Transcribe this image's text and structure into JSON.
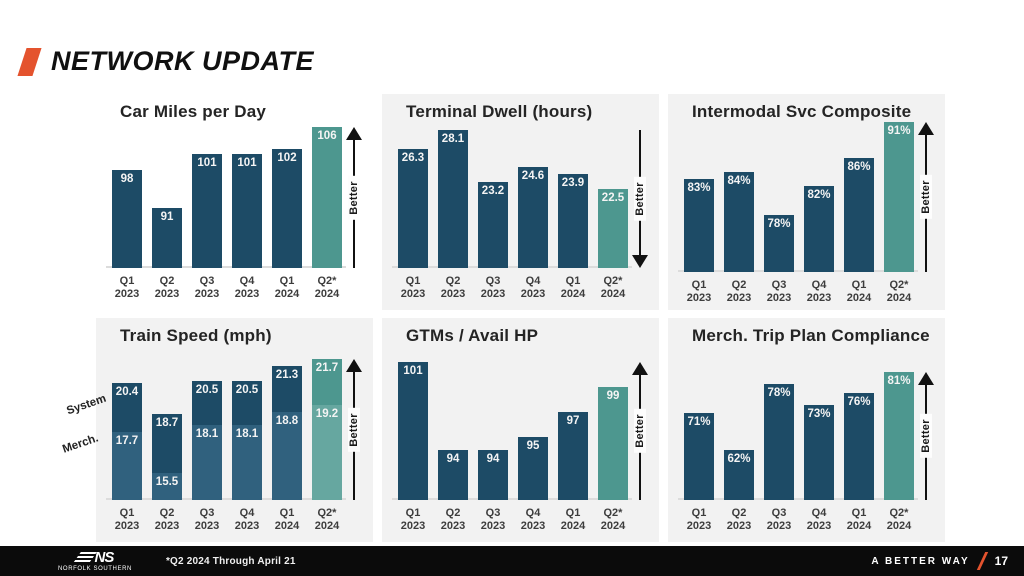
{
  "header": {
    "title": "NETWORK UPDATE"
  },
  "colors": {
    "accent_orange": "#E4532E",
    "navy": "#1D4B66",
    "navy_light": "#30617E",
    "teal": "#4D978F",
    "teal_light": "#66A7A0",
    "panel_bg": "#F2F2F2",
    "footer_bg": "#0B0B0B",
    "bar_label": "#F4F4F4",
    "axis_label": "#3D3D3D"
  },
  "footer": {
    "logo_text": "NS",
    "logo_subtext": "NORFOLK SOUTHERN",
    "footnote": "*Q2 2024 Through April 21",
    "tagline": "A BETTER WAY",
    "page_number": "17"
  },
  "chart_data": [
    {
      "id": "car-miles",
      "type": "bar",
      "title": "Car Miles per Day",
      "categories": [
        "Q1 2023",
        "Q2 2023",
        "Q3 2023",
        "Q4 2023",
        "Q1 2024",
        "Q2* 2024"
      ],
      "values": [
        98,
        91,
        101,
        101,
        102,
        106
      ],
      "labels": [
        "98",
        "91",
        "101",
        "101",
        "102",
        "106"
      ],
      "better": "up",
      "better_label": "Better",
      "highlight_last": true,
      "ylim": [
        80,
        106
      ],
      "panel": "white",
      "grid": false
    },
    {
      "id": "terminal-dwell",
      "type": "bar",
      "title": "Terminal Dwell (hours)",
      "categories": [
        "Q1 2023",
        "Q2 2023",
        "Q3 2023",
        "Q4 2023",
        "Q1 2024",
        "Q2* 2024"
      ],
      "values": [
        26.3,
        28.1,
        23.2,
        24.6,
        23.9,
        22.5
      ],
      "labels": [
        "26.3",
        "28.1",
        "23.2",
        "24.6",
        "23.9",
        "22.5"
      ],
      "better": "down",
      "better_label": "Better",
      "highlight_last": true,
      "ylim": [
        15,
        28.1
      ],
      "panel": "gray",
      "grid": false
    },
    {
      "id": "intermodal-svc",
      "type": "bar",
      "title": "Intermodal Svc Composite",
      "categories": [
        "Q1 2023",
        "Q2 2023",
        "Q3 2023",
        "Q4 2023",
        "Q1 2024",
        "Q2* 2024"
      ],
      "values": [
        83,
        84,
        78,
        82,
        86,
        91
      ],
      "labels": [
        "83%",
        "84%",
        "78%",
        "82%",
        "86%",
        "91%"
      ],
      "better": "up",
      "better_label": "Better",
      "highlight_last": true,
      "ylim": [
        70,
        91
      ],
      "panel": "gray",
      "grid": false
    },
    {
      "id": "train-speed",
      "type": "stacked-bar",
      "title": "Train Speed (mph)",
      "categories": [
        "Q1 2023",
        "Q2 2023",
        "Q3 2023",
        "Q4 2023",
        "Q1 2024",
        "Q2* 2024"
      ],
      "series": [
        {
          "name": "System",
          "values": [
            20.4,
            18.7,
            20.5,
            20.5,
            21.3,
            21.7
          ],
          "labels": [
            "20.4",
            "18.7",
            "20.5",
            "20.5",
            "21.3",
            "21.7"
          ]
        },
        {
          "name": "Merch.",
          "values": [
            17.7,
            15.5,
            18.1,
            18.1,
            18.8,
            19.2
          ],
          "labels": [
            "17.7",
            "15.5",
            "18.1",
            "18.1",
            "18.8",
            "19.2"
          ]
        }
      ],
      "better": "up",
      "better_label": "Better",
      "highlight_last": true,
      "ylim": [
        14,
        21.7
      ],
      "panel": "gray",
      "grid": false
    },
    {
      "id": "gtms-hp",
      "type": "bar",
      "title": "GTMs / Avail HP",
      "categories": [
        "Q1 2023",
        "Q2 2023",
        "Q3 2023",
        "Q4 2023",
        "Q1 2024",
        "Q2* 2024"
      ],
      "values": [
        101,
        94,
        94,
        95,
        97,
        99
      ],
      "labels": [
        "101",
        "94",
        "94",
        "95",
        "97",
        "99"
      ],
      "better": "up",
      "better_label": "Better",
      "highlight_last": true,
      "ylim": [
        90,
        101
      ],
      "panel": "gray",
      "grid": false
    },
    {
      "id": "merch-tpc",
      "type": "bar",
      "title": "Merch. Trip Plan Compliance",
      "categories": [
        "Q1 2023",
        "Q2 2023",
        "Q3 2023",
        "Q4 2023",
        "Q1 2024",
        "Q2* 2024"
      ],
      "values": [
        71,
        62,
        78,
        73,
        76,
        81
      ],
      "labels": [
        "71%",
        "62%",
        "78%",
        "73%",
        "76%",
        "81%"
      ],
      "better": "up",
      "better_label": "Better",
      "highlight_last": true,
      "ylim": [
        50,
        81
      ],
      "panel": "gray",
      "grid": false
    }
  ]
}
